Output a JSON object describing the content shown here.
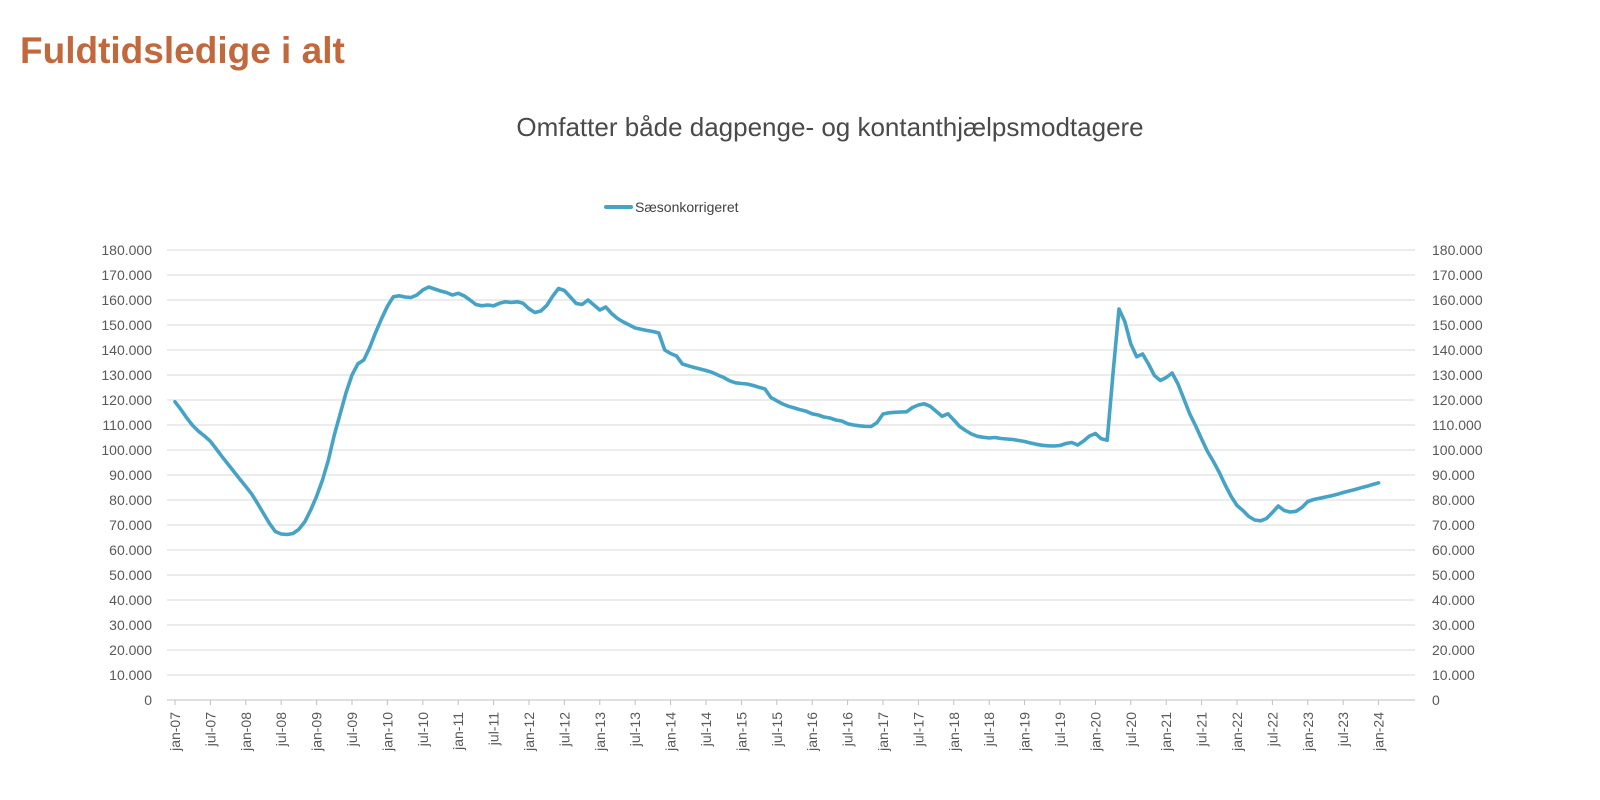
{
  "chart_data": {
    "type": "line",
    "title": "Fuldtidsledige i alt",
    "title_color": "#c1693c",
    "subtitle": "Omfatter både dagpenge- og kontanthjælpsmodtagere",
    "legend_position": "top-center",
    "grid": "horizontal",
    "ylim": [
      0,
      180000
    ],
    "y_tick_step": 10000,
    "y_tick_labels": [
      "0",
      "10.000",
      "20.000",
      "30.000",
      "40.000",
      "50.000",
      "60.000",
      "70.000",
      "80.000",
      "90.000",
      "100.000",
      "110.000",
      "120.000",
      "130.000",
      "140.000",
      "150.000",
      "160.000",
      "170.000",
      "180.000"
    ],
    "y_axis_sides": [
      "left",
      "right"
    ],
    "x_tick_labels": [
      "jan-07",
      "jul-07",
      "jan-08",
      "jul-08",
      "jan-09",
      "jul-09",
      "jan-10",
      "jul-10",
      "jan-11",
      "jul-11",
      "jan-12",
      "jul-12",
      "jan-13",
      "jul-13",
      "jan-14",
      "jul-14",
      "jan-15",
      "jul-15",
      "jan-16",
      "jul-16",
      "jan-17",
      "jul-17",
      "jan-18",
      "jul-18",
      "jan-19",
      "jul-19",
      "jan-20",
      "jul-20",
      "jan-21",
      "jul-21",
      "jan-22",
      "jul-22",
      "jan-23",
      "jul-23",
      "jan-24"
    ],
    "x_tick_every_n_points": 6,
    "grid_color": "#d9d9d9",
    "axis_color": "#bfbfbf",
    "series": [
      {
        "name": "Sæsonkorrigeret",
        "color": "#46a3c5",
        "x_start": "jan-07",
        "x_end": "jan-24",
        "x_step": "1 month",
        "values": [
          119300,
          116200,
          112800,
          109800,
          107500,
          105600,
          103500,
          100400,
          97300,
          94300,
          91300,
          88300,
          85400,
          82400,
          78600,
          74600,
          70700,
          67400,
          66400,
          66200,
          66600,
          68300,
          71300,
          76000,
          81500,
          88000,
          96000,
          106000,
          114500,
          123000,
          130000,
          134500,
          136000,
          141000,
          147000,
          152500,
          157500,
          161300,
          161700,
          161200,
          161000,
          162000,
          164000,
          165200,
          164400,
          163600,
          163000,
          162000,
          162700,
          161700,
          160000,
          158200,
          157700,
          158000,
          157700,
          158700,
          159300,
          159000,
          159300,
          158700,
          156500,
          155000,
          155600,
          157800,
          161500,
          164600,
          163800,
          161200,
          158600,
          158200,
          160000,
          158000,
          156000,
          157200,
          154600,
          152600,
          151200,
          150000,
          148800,
          148300,
          147800,
          147400,
          146800,
          140000,
          138600,
          137600,
          134400,
          133700,
          133000,
          132400,
          131800,
          131100,
          130000,
          129000,
          127700,
          126900,
          126600,
          126400,
          125800,
          125100,
          124400,
          121000,
          119700,
          118400,
          117500,
          116800,
          116100,
          115500,
          114500,
          114000,
          113200,
          112800,
          112000,
          111600,
          110500,
          110000,
          109700,
          109500,
          109400,
          111000,
          114400,
          114900,
          115100,
          115200,
          115300,
          117000,
          118000,
          118500,
          117500,
          115500,
          113500,
          114500,
          112000,
          109400,
          107800,
          106400,
          105500,
          105100,
          104800,
          105000,
          104600,
          104400,
          104200,
          103800,
          103400,
          102800,
          102300,
          101900,
          101700,
          101600,
          101800,
          102600,
          103000,
          102000,
          103600,
          105600,
          106600,
          104500,
          103900,
          131000,
          156400,
          151300,
          142400,
          137300,
          138400,
          134400,
          129800,
          127800,
          129000,
          130800,
          126400,
          120400,
          114400,
          109600,
          104400,
          99400,
          95400,
          91000,
          86000,
          81500,
          77800,
          75800,
          73400,
          72000,
          71700,
          72600,
          75000,
          77600,
          75800,
          75200,
          75500,
          77000,
          79400,
          80200,
          80700,
          81200,
          81700,
          82300,
          83000,
          83600,
          84200,
          84900,
          85500,
          86200,
          86900
        ]
      }
    ]
  }
}
